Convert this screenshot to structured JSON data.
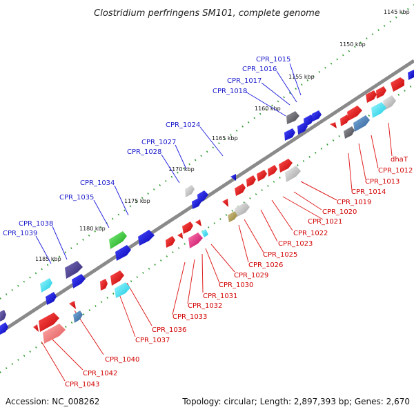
{
  "title": "Clostridium perfringens SM101, complete genome",
  "footer": {
    "accession": "Accession: NC_008262",
    "topology": "Topology: circular; Length: 2,897,393 bp; Genes: 2,670"
  },
  "colors": {
    "backbone": "#888888",
    "tick": "#2a9a2a",
    "top_label": "#1a1acc",
    "bottom_label": "#d20000",
    "leader_top": "#2a2ae0",
    "leader_bottom": "#e02020"
  },
  "kbp_labels": [
    "1145 kbp",
    "1150 kbp",
    "1155 kbp",
    "1160 kbp",
    "1165 kbp",
    "1170 kbp",
    "1175 kbp",
    "1180 kbp",
    "1185 kbp"
  ],
  "top_labels": [
    "CPR_1015",
    "CPR_1016",
    "CPR_1017",
    "CPR_1018",
    "CPR_1024",
    "CPR_1027",
    "CPR_1028",
    "CPR_1034",
    "CPR_1035",
    "CPR_1038",
    "CPR_1039"
  ],
  "bottom_labels": [
    "dhaT",
    "CPR_1012",
    "CPR_1013",
    "CPR_1014",
    "CPR_1019",
    "CPR_1020",
    "CPR_1021",
    "CPR_1022",
    "CPR_1023",
    "CPR_1025",
    "CPR_1026",
    "CPR_1029",
    "CPR_1030",
    "CPR_1031",
    "CPR_1032",
    "CPR_1033",
    "CPR_1036",
    "CPR_1037",
    "CPR_1040",
    "CPR_1042",
    "CPR_1043"
  ]
}
